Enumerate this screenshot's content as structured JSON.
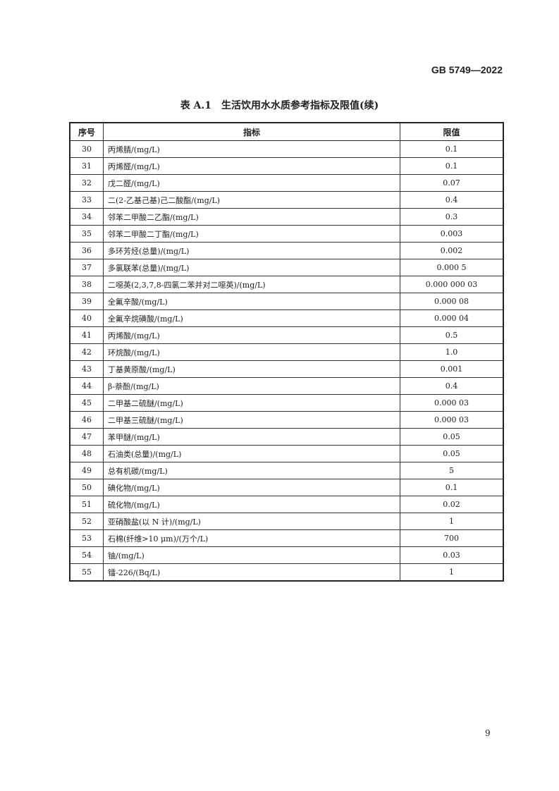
{
  "header": {
    "standard": "GB 5749—2022"
  },
  "title": "表 A.1　生活饮用水水质参考指标及限值(续)",
  "table": {
    "columns": [
      "序号",
      "指标",
      "限值"
    ],
    "rows": [
      [
        "30",
        "丙烯腈/(mg/L)",
        "0.1"
      ],
      [
        "31",
        "丙烯醛/(mg/L)",
        "0.1"
      ],
      [
        "32",
        "戊二醛/(mg/L)",
        "0.07"
      ],
      [
        "33",
        "二(2-乙基己基)己二酸酯/(mg/L)",
        "0.4"
      ],
      [
        "34",
        "邻苯二甲酸二乙酯/(mg/L)",
        "0.3"
      ],
      [
        "35",
        "邻苯二甲酸二丁酯/(mg/L)",
        "0.003"
      ],
      [
        "36",
        "多环芳烃(总量)/(mg/L)",
        "0.002"
      ],
      [
        "37",
        "多氯联苯(总量)/(mg/L)",
        "0.000 5"
      ],
      [
        "38",
        "二噁英(2,3,7,8-四氯二苯并对二噁英)/(mg/L)",
        "0.000 000 03"
      ],
      [
        "39",
        "全氟辛酸/(mg/L)",
        "0.000 08"
      ],
      [
        "40",
        "全氟辛烷磺酸/(mg/L)",
        "0.000 04"
      ],
      [
        "41",
        "丙烯酸/(mg/L)",
        "0.5"
      ],
      [
        "42",
        "环烷酸/(mg/L)",
        "1.0"
      ],
      [
        "43",
        "丁基黄原酸/(mg/L)",
        "0.001"
      ],
      [
        "44",
        "β-萘酚/(mg/L)",
        "0.4"
      ],
      [
        "45",
        "二甲基二硫醚/(mg/L)",
        "0.000 03"
      ],
      [
        "46",
        "二甲基三硫醚/(mg/L)",
        "0.000 03"
      ],
      [
        "47",
        "苯甲醚/(mg/L)",
        "0.05"
      ],
      [
        "48",
        "石油类(总量)/(mg/L)",
        "0.05"
      ],
      [
        "49",
        "总有机碳/(mg/L)",
        "5"
      ],
      [
        "50",
        "碘化物/(mg/L)",
        "0.1"
      ],
      [
        "51",
        "硫化物/(mg/L)",
        "0.02"
      ],
      [
        "52",
        "亚硝酸盐(以 N 计)/(mg/L)",
        "1"
      ],
      [
        "53",
        "石棉(纤维>10 μm)/(万个/L)",
        "700"
      ],
      [
        "54",
        "铀/(mg/L)",
        "0.03"
      ],
      [
        "55",
        "镭-226/(Bq/L)",
        "1"
      ]
    ]
  },
  "page_number": "9"
}
